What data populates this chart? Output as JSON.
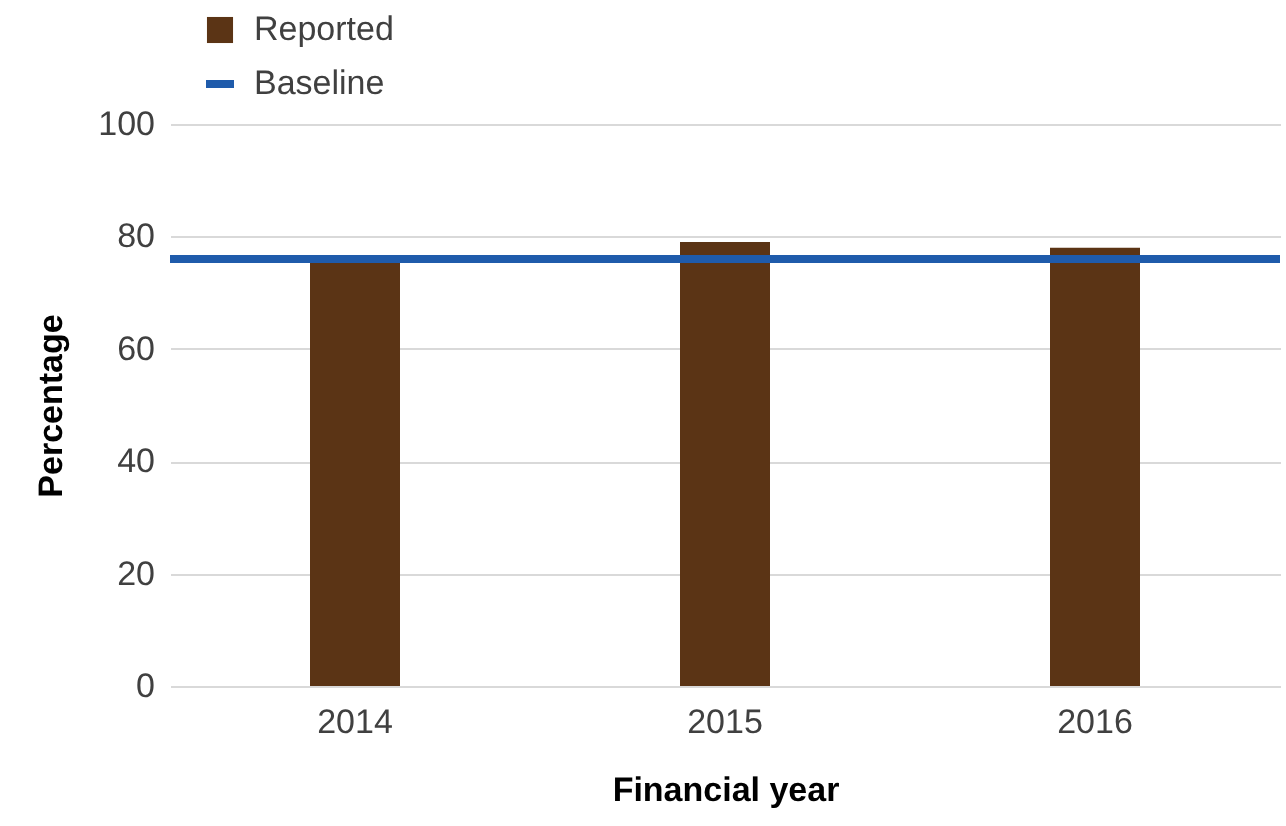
{
  "chart_data": {
    "type": "bar",
    "xlabel": "Financial year",
    "ylabel": "Percentage",
    "categories": [
      "2014",
      "2015",
      "2016"
    ],
    "series": [
      {
        "name": "Reported",
        "color": "#5b3415",
        "values": [
          76,
          79,
          78
        ]
      }
    ],
    "ref_lines": [
      {
        "axis": "y",
        "value": 76,
        "label": "Baseline",
        "color": "#1f5bab"
      }
    ],
    "ylim": [
      0,
      100
    ],
    "yticks": [
      0,
      20,
      40,
      60,
      80,
      100
    ],
    "grid": "y",
    "legend": "top left"
  }
}
